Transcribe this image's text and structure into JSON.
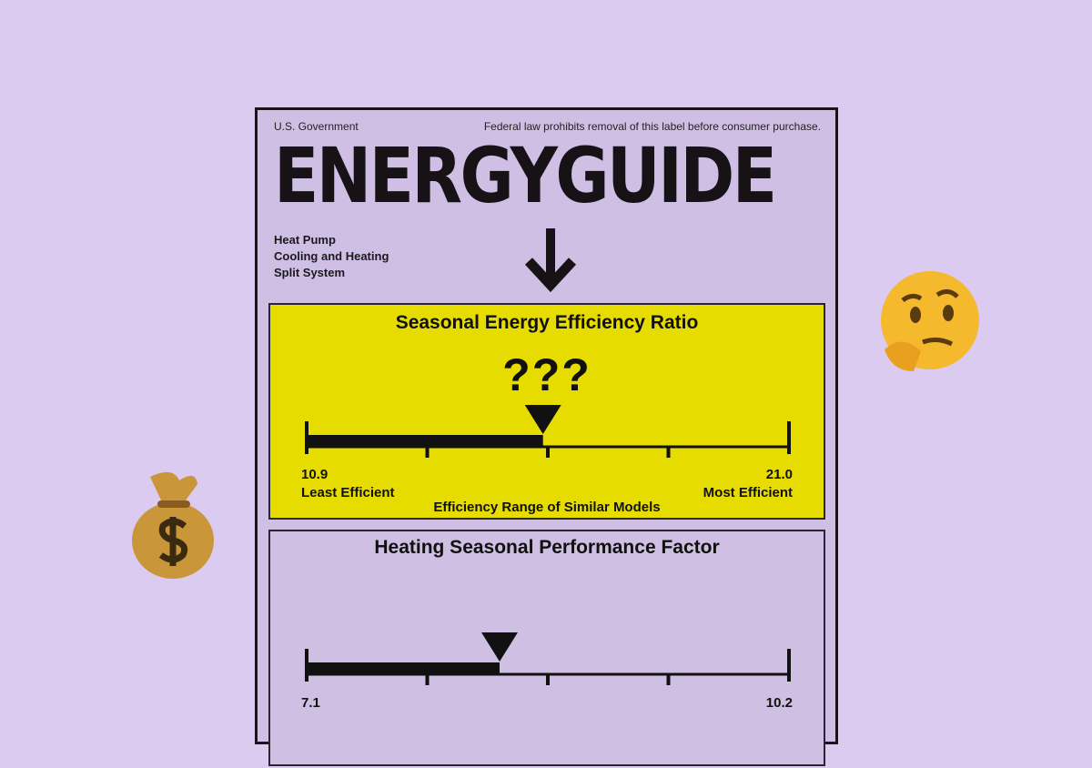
{
  "header": {
    "government": "U.S. Government",
    "notice": "Federal law prohibits removal of this  label before consumer purchase.",
    "title": "ENERGYGUIDE"
  },
  "product": [
    "Heat Pump",
    "Cooling and Heating",
    "Split System"
  ],
  "seer": {
    "title": "Seasonal Energy Efficiency Ratio",
    "value": "???",
    "min": "10.9",
    "max": "21.0",
    "min_label": "Least Efficient",
    "max_label": "Most Efficient",
    "range_label": "Efficiency Range of Similar Models",
    "marker_fraction": 0.49,
    "color": "#e6dc00"
  },
  "hspf": {
    "title": "Heating Seasonal Performance Factor",
    "min": "7.1",
    "max": "10.2",
    "marker_fraction": 0.4
  },
  "decorations": {
    "left": "money-bag-emoji",
    "right": "thinking-face-emoji"
  }
}
